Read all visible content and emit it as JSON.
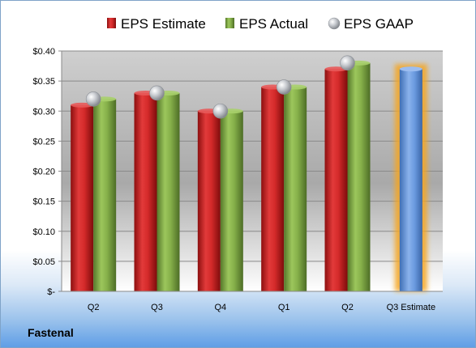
{
  "company": "Fastenal",
  "chart_data": {
    "type": "bar",
    "categories": [
      "Q2",
      "Q3",
      "Q4",
      "Q1",
      "Q2",
      "Q3 Estimate"
    ],
    "series": [
      {
        "name": "EPS Estimate",
        "values": [
          0.31,
          0.33,
          0.3,
          0.34,
          0.37,
          null
        ],
        "color": "#d42a2a"
      },
      {
        "name": "EPS Actual",
        "values": [
          0.32,
          0.33,
          0.3,
          0.34,
          0.38,
          null
        ],
        "color": "#86b04a"
      },
      {
        "name": "EPS GAAP",
        "values": [
          0.32,
          0.33,
          0.3,
          0.34,
          0.38,
          null
        ],
        "color": "#b8bcc2"
      }
    ],
    "estimate": {
      "category": "Q3 Estimate",
      "value": 0.37,
      "color": "#6b9be0",
      "glow": "#f5a623"
    },
    "ylim": [
      0,
      0.4
    ],
    "y_ticks": [
      0,
      0.05,
      0.1,
      0.15,
      0.2,
      0.25,
      0.3,
      0.35,
      0.4
    ],
    "y_tick_labels": [
      "$-",
      "$0.05",
      "$0.10",
      "$0.15",
      "$0.20",
      "$0.25",
      "$0.30",
      "$0.35",
      "$0.40"
    ],
    "legend_position": "top",
    "grid": true
  }
}
